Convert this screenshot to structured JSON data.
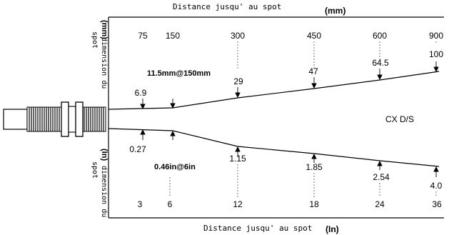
{
  "top_axis": {
    "title": "Distance jusqu' au spot",
    "unit": "(mm)",
    "ticks": [
      "75",
      "150",
      "300",
      "450",
      "600",
      "900"
    ]
  },
  "bottom_axis": {
    "title": "Distance jusqu' au spot",
    "unit": "(In)",
    "ticks": [
      "3",
      "6",
      "12",
      "18",
      "24",
      "36"
    ]
  },
  "left_labels": {
    "top_unit": "(mm)",
    "top_text_1": "dimension du",
    "top_text_2": "spot",
    "bottom_unit": "(In)",
    "bottom_text_1": "dimension du",
    "bottom_text_2": "spot"
  },
  "focus_labels": {
    "metric": "11.5mm@150mm",
    "imperial": "0.46in@6in"
  },
  "spot_sizes_mm": [
    "6.9",
    "29",
    "47",
    "64.5",
    "100"
  ],
  "spot_sizes_in": [
    "0.27",
    "1.15",
    "1.85",
    "2.54",
    "4.0"
  ],
  "model": "CX D/S"
}
